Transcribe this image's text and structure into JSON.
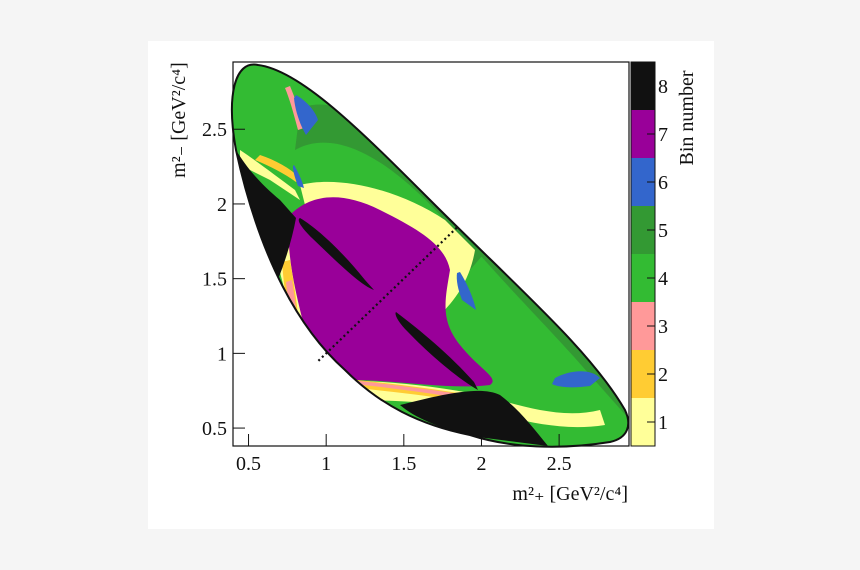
{
  "chart_data": {
    "type": "heatmap",
    "title": "",
    "xlabel": "m²₊ [GeV²/c⁴]",
    "ylabel": "m²₋ [GeV²/c⁴]",
    "xlim": [
      0.4,
      2.95
    ],
    "ylim": [
      0.38,
      2.95
    ],
    "xticks": [
      "0.5",
      "1",
      "1.5",
      "2",
      "2.5"
    ],
    "yticks": [
      "0.5",
      "1",
      "1.5",
      "2",
      "2.5"
    ],
    "colorbar": {
      "title": "Bin number",
      "range": [
        0.5,
        8.5
      ],
      "ticks": [
        "1",
        "2",
        "3",
        "4",
        "5",
        "6",
        "7",
        "8"
      ],
      "colors": [
        "#ffff99",
        "#ffcc33",
        "#ff9999",
        "#33bb33",
        "#339933",
        "#3366cc",
        "#990099",
        "#111111"
      ]
    },
    "diagonal": {
      "from": [
        0.95,
        0.95
      ],
      "to": [
        1.85,
        1.85
      ],
      "style": "dotted"
    }
  }
}
